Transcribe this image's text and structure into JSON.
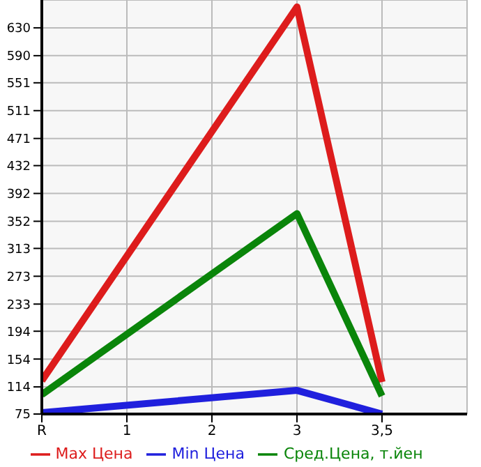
{
  "chart_data": {
    "type": "line",
    "categories": [
      "R",
      "1",
      "2",
      "3",
      "3,5"
    ],
    "series": [
      {
        "name": "Max Цена",
        "color": "#dd1c1c",
        "values": [
          123,
          null,
          null,
          660,
          121
        ]
      },
      {
        "name": "Min Цена",
        "color": "#2020dd",
        "values": [
          77,
          null,
          null,
          109,
          75
        ]
      },
      {
        "name": "Сред.Цена, т.йен",
        "color": "#0a850a",
        "values": [
          103,
          null,
          null,
          363,
          101
        ]
      }
    ],
    "ylim": [
      75,
      670
    ],
    "yticks": [
      75,
      114,
      154,
      194,
      233,
      273,
      313,
      352,
      392,
      432,
      471,
      511,
      551,
      590,
      630
    ],
    "grid": true,
    "legend": "bottom",
    "marker": "none",
    "line_style": "solid"
  }
}
